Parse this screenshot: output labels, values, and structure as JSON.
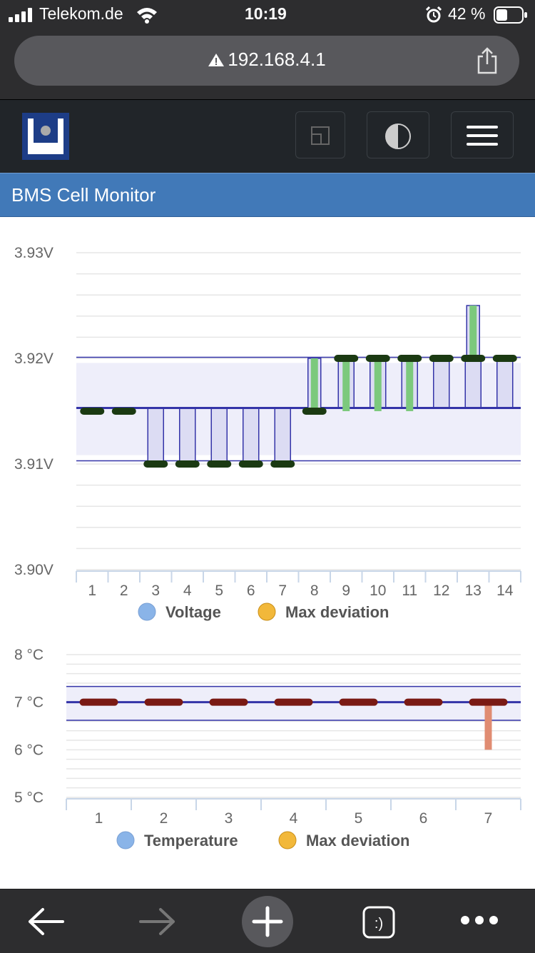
{
  "status_bar": {
    "carrier": "Telekom.de",
    "time": "10:19",
    "battery": "42 %"
  },
  "browser": {
    "url": "192.168.4.1"
  },
  "page": {
    "title": "BMS Cell Monitor"
  },
  "colors": {
    "nav_bg": "#212529",
    "title_bg": "#4179b8",
    "bar_border": "#3434a8",
    "bar_fill": "#dcdcf3",
    "voltage_dev": "#7cc97d",
    "voltage_marker": "#1b3a12",
    "temp_dev": "#e08c72",
    "temp_marker": "#7a1a14",
    "legend_blue": "#8ab4e8",
    "legend_yellow": "#f2b83a"
  },
  "icons": {
    "logo": "logo-icon",
    "window": "window-icon",
    "contrast": "contrast-icon",
    "menu": "hamburger-menu-icon"
  },
  "chart_data": [
    {
      "type": "bar",
      "ylim": [
        3.9,
        3.93
      ],
      "y_ticks": [
        "3.93V",
        "3.92V",
        "3.91V",
        "3.90V"
      ],
      "categories": [
        "1",
        "2",
        "3",
        "4",
        "5",
        "6",
        "7",
        "8",
        "9",
        "10",
        "11",
        "12",
        "13",
        "14"
      ],
      "reference": {
        "average": 3.9153,
        "upper": 3.9201,
        "lower": 3.9103
      },
      "series": [
        {
          "name": "Voltage",
          "values": [
            3.915,
            3.915,
            3.91,
            3.91,
            3.91,
            3.91,
            3.91,
            3.915,
            3.92,
            3.92,
            3.92,
            3.92,
            3.92,
            3.92
          ]
        },
        {
          "name": "Max deviation",
          "values": [
            3.915,
            3.915,
            3.91,
            3.91,
            3.91,
            3.91,
            3.91,
            3.92,
            3.915,
            3.915,
            3.915,
            3.92,
            3.925,
            3.92
          ]
        }
      ]
    },
    {
      "type": "bar",
      "ylim": [
        5,
        8
      ],
      "y_ticks": [
        "8 °C",
        "7 °C",
        "6 °C",
        "5 °C"
      ],
      "categories": [
        "1",
        "2",
        "3",
        "4",
        "5",
        "6",
        "7"
      ],
      "reference": {
        "average": 7.0,
        "upper": 7.33,
        "lower": 6.62
      },
      "series": [
        {
          "name": "Temperature",
          "values": [
            7.0,
            7.0,
            7.0,
            7.0,
            7.0,
            7.0,
            7.0
          ]
        },
        {
          "name": "Max deviation",
          "values": [
            7.0,
            7.0,
            7.0,
            7.0,
            7.0,
            7.0,
            6.0
          ]
        }
      ]
    }
  ]
}
